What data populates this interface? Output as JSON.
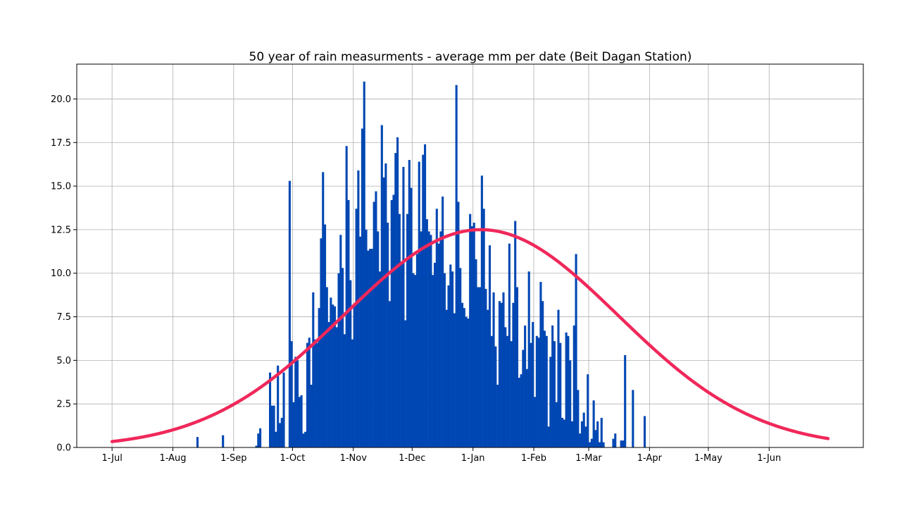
{
  "chart_data": {
    "type": "bar",
    "title": "50 year of rain measurments - average mm per date (Beit Dagan Station)",
    "xlabel": "",
    "ylabel": "",
    "x_tick_labels": [
      "1-Jul",
      "1-Aug",
      "1-Sep",
      "1-Oct",
      "1-Nov",
      "1-Dec",
      "1-Jan",
      "1-Feb",
      "1-Mar",
      "1-Apr",
      "1-May",
      "1-Jun"
    ],
    "x_tick_days": [
      0,
      31,
      62,
      92,
      123,
      153,
      184,
      215,
      243,
      274,
      304,
      335
    ],
    "y_ticks": [
      0.0,
      2.5,
      5.0,
      7.5,
      10.0,
      12.5,
      15.0,
      17.5,
      20.0
    ],
    "y_tick_labels": [
      "0.0",
      "2.5",
      "5.0",
      "7.5",
      "10.0",
      "12.5",
      "15.0",
      "17.5",
      "20.0"
    ],
    "xlim": [
      -18,
      383
    ],
    "ylim": [
      0,
      22
    ],
    "grid": true,
    "bar_color": "#0047b3",
    "curve_color": "#f0285a",
    "series": [
      {
        "type": "bar",
        "x_start_day": 0,
        "values": [
          0,
          0,
          0,
          0,
          0,
          0,
          0,
          0,
          0,
          0,
          0,
          0,
          0,
          0,
          0,
          0,
          0,
          0,
          0,
          0,
          0,
          0,
          0,
          0,
          0,
          0,
          0,
          0,
          0,
          0,
          0,
          0,
          0,
          0,
          0,
          0,
          0,
          0,
          0,
          0,
          0,
          0,
          0,
          0.6,
          0,
          0,
          0,
          0,
          0,
          0,
          0,
          0,
          0,
          0,
          0,
          0,
          0.7,
          0,
          0,
          0,
          0,
          0,
          0,
          0,
          0,
          0,
          0,
          0,
          0,
          0,
          0,
          0,
          0,
          0.1,
          0.8,
          1.1,
          0,
          0,
          0,
          0,
          4.3,
          2.4,
          2.4,
          0.9,
          4.7,
          1.4,
          1.7,
          4.3,
          0,
          0,
          15.3,
          6.1,
          2.6,
          5.2,
          5.0,
          2.9,
          3.0,
          0.8,
          0.9,
          6.0,
          6.3,
          3.6,
          8.9,
          6.2,
          6.0,
          8.0,
          12.0,
          15.8,
          12.8,
          9.2,
          7.2,
          8.6,
          8.2,
          8.1,
          6.9,
          10.0,
          12.2,
          10.3,
          6.5,
          17.3,
          14.2,
          9.6,
          6.2,
          8.2,
          13.7,
          15.9,
          12.1,
          18.3,
          21.0,
          12.5,
          11.3,
          11.4,
          11.4,
          14.1,
          14.7,
          12.4,
          10.1,
          18.5,
          15.5,
          16.3,
          12.9,
          8.4,
          14.2,
          14.5,
          16.9,
          17.8,
          13.4,
          10.6,
          16.1,
          7.3,
          13.4,
          16.5,
          14.9,
          10.0,
          9.9,
          11.1,
          16.4,
          12.4,
          16.8,
          17.4,
          13.1,
          12.4,
          12.2,
          9.9,
          10.6,
          13.7,
          11.7,
          12.4,
          14.4,
          10.0,
          7.9,
          9.3,
          10.5,
          10.1,
          7.7,
          20.8,
          14.1,
          10.3,
          8.3,
          8.0,
          7.5,
          7.4,
          13.4,
          12.7,
          12.9,
          10.8,
          9.2,
          9.2,
          15.6,
          13.7,
          9.1,
          7.9,
          11.6,
          6.4,
          8.9,
          5.8,
          3.6,
          8.4,
          8.3,
          8.9,
          6.9,
          6.4,
          11.7,
          6.1,
          8.3,
          13.0,
          9.2,
          4.0,
          4.2,
          5.6,
          7.0,
          4.5,
          10.1,
          6.0,
          7.2,
          2.9,
          6.4,
          6.3,
          9.5,
          8.4,
          6.7,
          6.4,
          1.2,
          5.2,
          7.0,
          6.1,
          2.6,
          7.9,
          6.0,
          1.7,
          1.6,
          6.6,
          6.4,
          5.0,
          1.5,
          7.0,
          11.1,
          3.3,
          0.8,
          1.5,
          2.0,
          1.2,
          4.2,
          0.3,
          0.5,
          2.7,
          1.0,
          1.5,
          0.3,
          1.7,
          0.3,
          0,
          0,
          0,
          0,
          0.5,
          0.8,
          0,
          0,
          0.4,
          0.4,
          5.3,
          0,
          0,
          0,
          3.3,
          0,
          0,
          0,
          0,
          0,
          1.8,
          0,
          0,
          0,
          0,
          0,
          0,
          0,
          0,
          0,
          0,
          0
        ]
      },
      {
        "type": "line",
        "model": "gaussian",
        "amplitude": 12.5,
        "mean_day": 188,
        "stdev_days": 70,
        "x_range_days": [
          0,
          365
        ]
      }
    ]
  }
}
